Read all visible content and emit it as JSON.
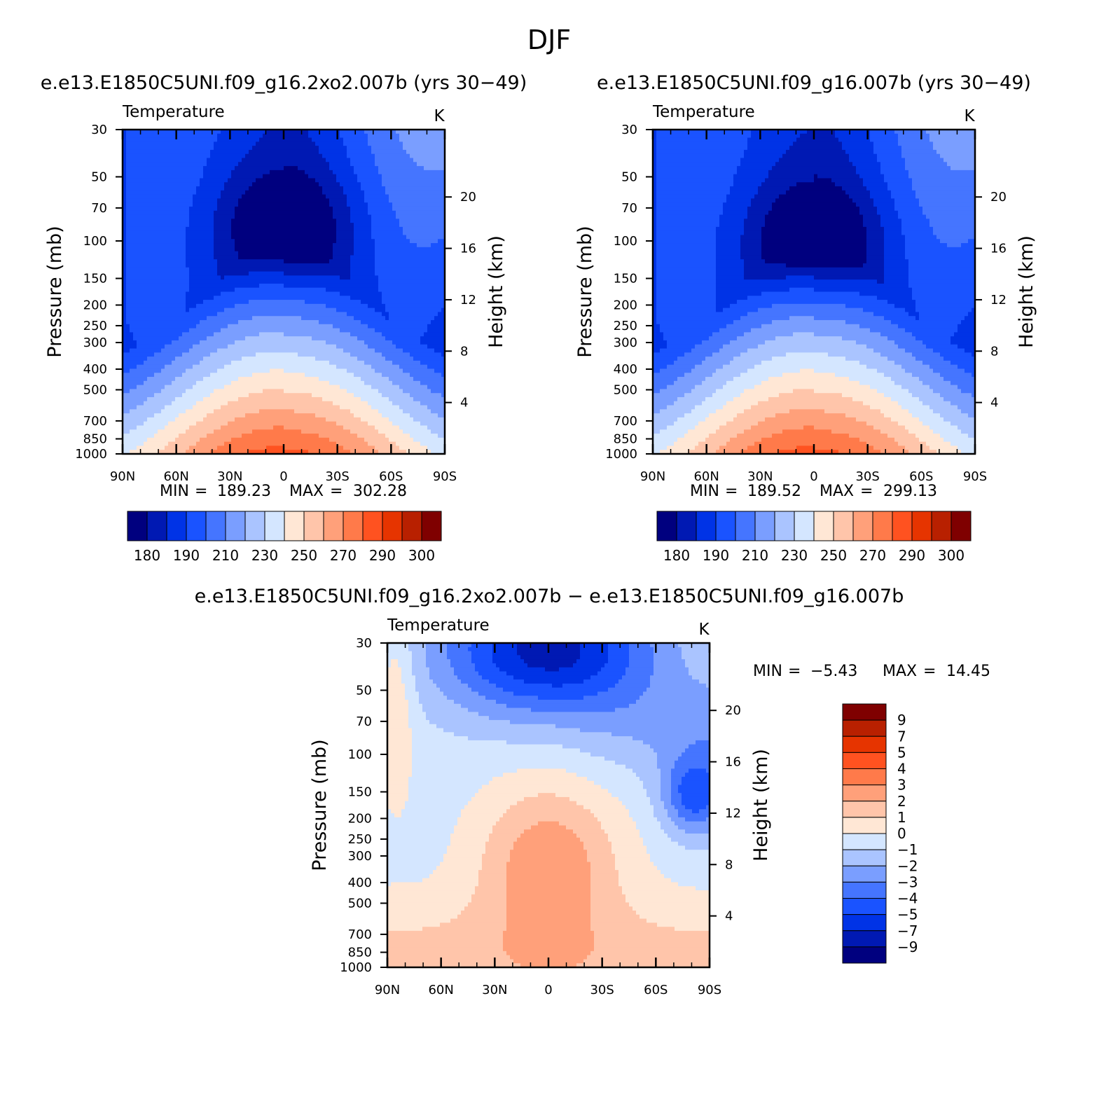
{
  "figure_title": "DJF",
  "colors": {
    "abs_scale": [
      "#00007f",
      "#0019b3",
      "#0033e6",
      "#1a53ff",
      "#4575ff",
      "#7a9eff",
      "#aac4ff",
      "#d4e6ff",
      "#ffe7d5",
      "#ffc5aa",
      "#ffa07a",
      "#ff7a4a",
      "#ff5220",
      "#e63400",
      "#b82000",
      "#7f0000"
    ],
    "diff_scale": [
      "#7f0000",
      "#b82000",
      "#e63400",
      "#ff5220",
      "#ff7a4a",
      "#ffa07a",
      "#ffc5aa",
      "#ffe7d5",
      "#d4e6ff",
      "#aac4ff",
      "#7a9eff",
      "#4575ff",
      "#1a53ff",
      "#0033e6",
      "#0019b3",
      "#00007f"
    ]
  },
  "chart_data": [
    {
      "type": "contour",
      "title": "e.e13.E1850C5UNI.f09_g16.2xo2.007b (yrs 30−49)",
      "field_label": "Temperature",
      "units": "K",
      "ylabel": "Pressure (mb)",
      "ylabel_right": "Height (km)",
      "x_ticks": [
        "90N",
        "60N",
        "30N",
        "0",
        "30S",
        "60S",
        "90S"
      ],
      "y_ticks": [
        "30",
        "50",
        "70",
        "100",
        "150",
        "200",
        "250",
        "300",
        "400",
        "500",
        "700",
        "850",
        "1000"
      ],
      "height_ticks": [
        "20",
        "16",
        "12",
        "8",
        "4"
      ],
      "min_label": "MIN",
      "min_value": "189.23",
      "max_label": "MAX",
      "max_value": "302.28",
      "colorbar_labels": [
        "180",
        "190",
        "210",
        "230",
        "250",
        "270",
        "290",
        "300"
      ]
    },
    {
      "type": "contour",
      "title": "e.e13.E1850C5UNI.f09_g16.007b (yrs 30−49)",
      "field_label": "Temperature",
      "units": "K",
      "ylabel": "Pressure (mb)",
      "ylabel_right": "Height (km)",
      "x_ticks": [
        "90N",
        "60N",
        "30N",
        "0",
        "30S",
        "60S",
        "90S"
      ],
      "y_ticks": [
        "30",
        "50",
        "70",
        "100",
        "150",
        "200",
        "250",
        "300",
        "400",
        "500",
        "700",
        "850",
        "1000"
      ],
      "height_ticks": [
        "20",
        "16",
        "12",
        "8",
        "4"
      ],
      "min_label": "MIN",
      "min_value": "189.52",
      "max_label": "MAX",
      "max_value": "299.13",
      "colorbar_labels": [
        "180",
        "190",
        "210",
        "230",
        "250",
        "270",
        "290",
        "300"
      ]
    },
    {
      "type": "contour",
      "title": "e.e13.E1850C5UNI.f09_g16.2xo2.007b − e.e13.E1850C5UNI.f09_g16.007b",
      "field_label": "Temperature",
      "units": "K",
      "ylabel": "Pressure (mb)",
      "ylabel_right": "Height (km)",
      "x_ticks": [
        "90N",
        "60N",
        "30N",
        "0",
        "30S",
        "60S",
        "90S"
      ],
      "y_ticks": [
        "30",
        "50",
        "70",
        "100",
        "150",
        "200",
        "250",
        "300",
        "400",
        "500",
        "700",
        "850",
        "1000"
      ],
      "height_ticks": [
        "20",
        "16",
        "12",
        "8",
        "4"
      ],
      "min_label": "MIN",
      "min_value": "−5.43",
      "max_label": "MAX",
      "max_value": "14.45",
      "colorbar_labels": [
        "9",
        "7",
        "5",
        "4",
        "3",
        "2",
        "1",
        "0",
        "−1",
        "−2",
        "−3",
        "−4",
        "−5",
        "−7",
        "−9"
      ]
    }
  ]
}
